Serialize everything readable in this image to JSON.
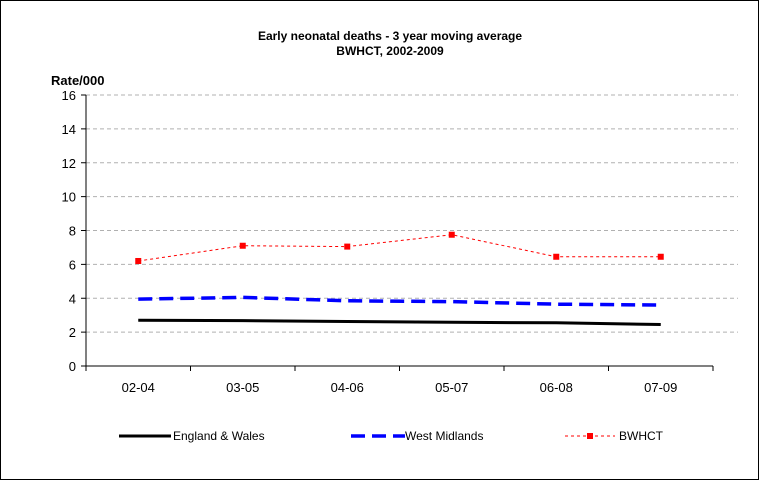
{
  "chart_data": {
    "type": "line",
    "title": "Early neonatal deaths - 3 year moving average",
    "subtitle": "BWHCT, 2002-2009",
    "ylabel": "Rate/000",
    "xlabel": "",
    "categories": [
      "02-04",
      "03-05",
      "04-06",
      "05-07",
      "06-08",
      "07-09"
    ],
    "ylim": [
      0,
      16
    ],
    "yticks": [
      0,
      2,
      4,
      6,
      8,
      10,
      12,
      14,
      16
    ],
    "grid": "horizontal-dashed",
    "legend_position": "bottom",
    "series": [
      {
        "name": "England & Wales",
        "values": [
          2.7,
          2.68,
          2.63,
          2.58,
          2.55,
          2.45
        ],
        "color": "#000000",
        "style": "solid"
      },
      {
        "name": "West Midlands",
        "values": [
          3.95,
          4.05,
          3.85,
          3.8,
          3.65,
          3.6
        ],
        "color": "#0000ff",
        "style": "dashed"
      },
      {
        "name": "BWHCT",
        "values": [
          6.2,
          7.1,
          7.05,
          7.75,
          6.45,
          6.45
        ],
        "color": "#ff0000",
        "style": "dotted-square-markers"
      }
    ]
  }
}
